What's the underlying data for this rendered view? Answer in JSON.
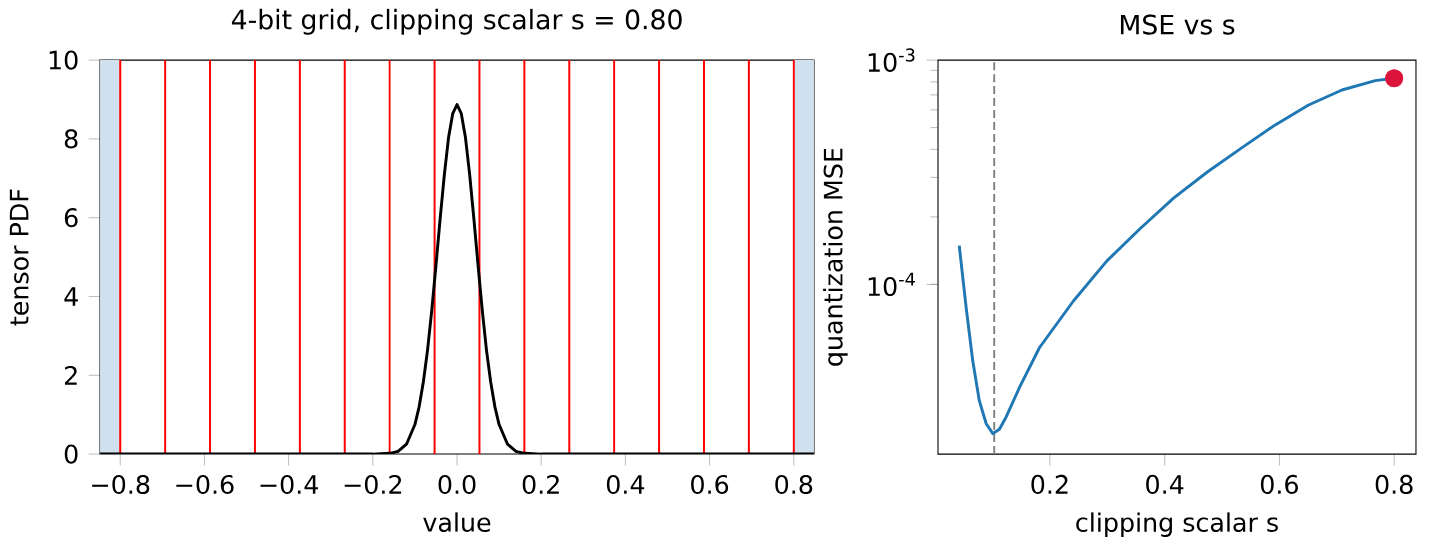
{
  "chart_data": [
    {
      "type": "line",
      "title": "4-bit grid, clipping scalar s = 0.80",
      "xlabel": "value",
      "ylabel": "tensor PDF",
      "xlim": [
        -0.848,
        0.848
      ],
      "ylim": [
        0,
        10
      ],
      "xticks": [
        {
          "value": -0.8,
          "label": "−0.8"
        },
        {
          "value": -0.6,
          "label": "−0.6"
        },
        {
          "value": -0.4,
          "label": "−0.4"
        },
        {
          "value": -0.2,
          "label": "−0.2"
        },
        {
          "value": 0,
          "label": "0.0"
        },
        0.2,
        0.4,
        0.6,
        0.8
      ],
      "yticks": [
        0,
        2,
        4,
        6,
        8,
        10
      ],
      "series": [
        {
          "color": "#000000",
          "x": [
            -0.848,
            -0.2,
            -0.16,
            -0.14,
            -0.12,
            -0.1,
            -0.09,
            -0.08,
            -0.07,
            -0.06,
            -0.05,
            -0.04,
            -0.03,
            -0.02,
            -0.01,
            0.0,
            0.01,
            0.02,
            0.03,
            0.04,
            0.05,
            0.06,
            0.07,
            0.08,
            0.09,
            0.1,
            0.12,
            0.14,
            0.16,
            0.2,
            0.848
          ],
          "values": [
            0,
            0,
            0.02,
            0.07,
            0.25,
            0.75,
            1.2,
            1.83,
            2.64,
            3.65,
            4.79,
            5.98,
            7.1,
            8.04,
            8.65,
            8.87,
            8.65,
            8.04,
            7.1,
            5.98,
            4.79,
            3.65,
            2.64,
            1.83,
            1.2,
            0.75,
            0.25,
            0.07,
            0.02,
            0,
            0
          ]
        }
      ],
      "ref_lines": [
        {
          "axis": "x",
          "value": -0.8,
          "color": "#ff0000"
        },
        {
          "axis": "x",
          "value": -0.6933,
          "color": "#ff0000"
        },
        {
          "axis": "x",
          "value": -0.5867,
          "color": "#ff0000"
        },
        {
          "axis": "x",
          "value": -0.48,
          "color": "#ff0000"
        },
        {
          "axis": "x",
          "value": -0.3733,
          "color": "#ff0000"
        },
        {
          "axis": "x",
          "value": -0.2667,
          "color": "#ff0000"
        },
        {
          "axis": "x",
          "value": -0.16,
          "color": "#ff0000"
        },
        {
          "axis": "x",
          "value": -0.0533,
          "color": "#ff0000"
        },
        {
          "axis": "x",
          "value": 0.0533,
          "color": "#ff0000"
        },
        {
          "axis": "x",
          "value": 0.16,
          "color": "#ff0000"
        },
        {
          "axis": "x",
          "value": 0.2667,
          "color": "#ff0000"
        },
        {
          "axis": "x",
          "value": 0.3733,
          "color": "#ff0000"
        },
        {
          "axis": "x",
          "value": 0.48,
          "color": "#ff0000"
        },
        {
          "axis": "x",
          "value": 0.5867,
          "color": "#ff0000"
        },
        {
          "axis": "x",
          "value": 0.6933,
          "color": "#ff0000"
        },
        {
          "axis": "x",
          "value": 0.8,
          "color": "#ff0000"
        }
      ],
      "bands": [
        {
          "axis": "x",
          "from": -0.848,
          "to": -0.8,
          "color": "#cfe0ef"
        },
        {
          "axis": "x",
          "from": 0.8,
          "to": 0.848,
          "color": "#cfe0ef"
        }
      ]
    },
    {
      "type": "line",
      "title": "MSE vs s",
      "xlabel": "clipping scalar s",
      "ylabel": "quantization MSE",
      "log": "y",
      "xlim": [
        0.005,
        0.838
      ],
      "ylim": [
        1.75e-05,
        0.001
      ],
      "xticks": [
        0.2,
        0.4,
        0.6,
        0.8
      ],
      "yticks": [
        {
          "value": 0.0001,
          "label": "10$^{-4}$"
        },
        {
          "value": 0.001,
          "label": "10$^{-3}$"
        }
      ],
      "series": [
        {
          "color": "#1f77b4",
          "x": [
            0.042,
            0.054,
            0.0655,
            0.077,
            0.089,
            0.1006,
            0.112,
            0.124,
            0.147,
            0.182,
            0.241,
            0.299,
            0.358,
            0.416,
            0.475,
            0.533,
            0.592,
            0.65,
            0.709,
            0.767,
            0.8
          ],
          "values": [
            0.000149,
            7.9e-05,
            4.57e-05,
            3.03e-05,
            2.39e-05,
            2.16e-05,
            2.26e-05,
            2.57e-05,
            3.47e-05,
            5.23e-05,
            8.43e-05,
            0.000127,
            0.000178,
            0.000243,
            0.000318,
            0.000404,
            0.000513,
            0.000629,
            0.000736,
            0.00081,
            0.00083
          ]
        },
        {
          "type": "scatter",
          "color": "#dc143c",
          "marker": "circle",
          "x": [
            0.8
          ],
          "values": [
            0.00083
          ]
        }
      ],
      "ref_lines": [
        {
          "axis": "x",
          "value": 0.103,
          "color": "#808080",
          "line_style": "dashed"
        }
      ]
    }
  ]
}
